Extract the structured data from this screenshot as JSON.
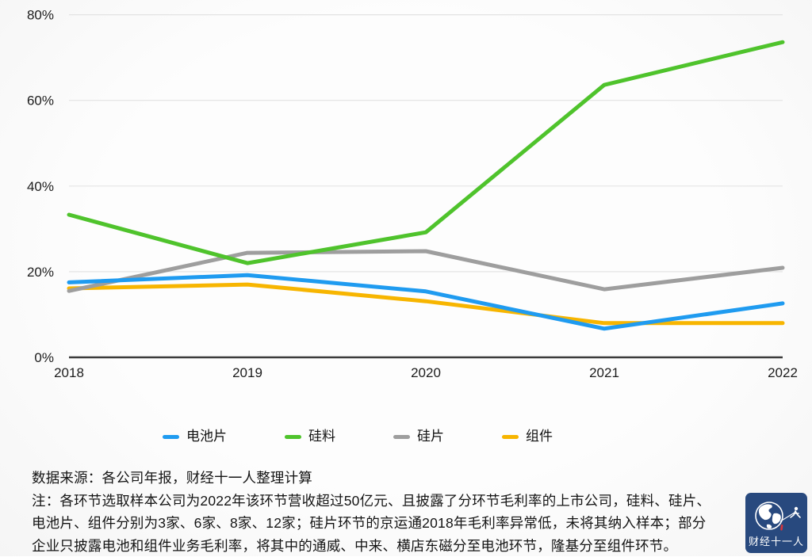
{
  "chart_data": {
    "type": "line",
    "x": [
      "2018",
      "2019",
      "2020",
      "2021",
      "2022"
    ],
    "xlabel": "",
    "ylabel": "",
    "ylim": [
      0,
      80
    ],
    "grid": true,
    "legend_position": "bottom",
    "yticks": [
      {
        "v": 0,
        "label": "0%"
      },
      {
        "v": 20,
        "label": "20%"
      },
      {
        "v": 40,
        "label": "40%"
      },
      {
        "v": 60,
        "label": "60%"
      },
      {
        "v": 80,
        "label": "80%"
      }
    ],
    "series": [
      {
        "id": "battery-cell",
        "name": "电池片",
        "color": "#1f9bf0",
        "zorder": 4,
        "values": [
          17.5,
          19.2,
          15.4,
          6.7,
          12.6
        ]
      },
      {
        "id": "silicon-material",
        "name": "硅料",
        "color": "#4fc32c",
        "zorder": 3,
        "values": [
          33.3,
          22.0,
          29.2,
          63.6,
          73.6
        ]
      },
      {
        "id": "silicon-wafer",
        "name": "硅片",
        "color": "#9e9e9e",
        "zorder": 2,
        "values": [
          15.5,
          24.4,
          24.8,
          15.9,
          20.9
        ]
      },
      {
        "id": "module",
        "name": "组件",
        "color": "#f7b500",
        "zorder": 1,
        "values": [
          16.1,
          17.0,
          13.1,
          8.0,
          8.0
        ]
      }
    ]
  },
  "legend": {
    "items": [
      {
        "label": "电池片",
        "color": "#1f9bf0"
      },
      {
        "label": "硅料",
        "color": "#4fc32c"
      },
      {
        "label": "硅片",
        "color": "#9e9e9e"
      },
      {
        "label": "组件",
        "color": "#f7b500"
      }
    ]
  },
  "footer": {
    "source_line": "数据来源：各公司年报，财经十一人整理计算",
    "note_line_1": "注：各环节选取样本公司为2022年该环节营收超过50亿元、且披露了分环节毛利率的上市公司，硅料、硅片、",
    "note_line_2": "电池片、组件分别为3家、6家、8家、12家；硅片环节的京运通2018年毛利率异常低，未将其纳入样本；部分",
    "note_line_3": "企业只披露电池和组件业务毛利率，将其中的通威、中来、横店东磁分至电池环节，隆基分至组件环节。"
  },
  "logo": {
    "text": "财经十一人",
    "background": "#28497e",
    "accent_red": "#d6343c"
  }
}
